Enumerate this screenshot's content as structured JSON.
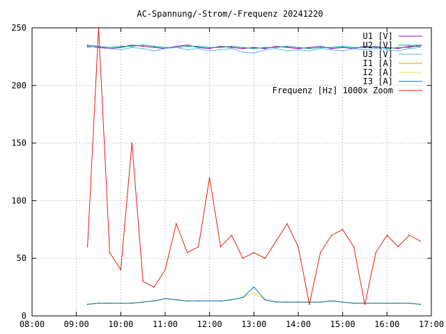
{
  "chart_data": {
    "type": "line",
    "title": "AC-Spannung/-Strom/-Frequenz 20241220",
    "xlabel": "",
    "ylabel": "",
    "xlim": [
      "08:00",
      "17:00"
    ],
    "ylim": [
      0,
      250
    ],
    "x_ticks": [
      "08:00",
      "09:00",
      "10:00",
      "11:00",
      "12:00",
      "13:00",
      "14:00",
      "15:00",
      "16:00",
      "17:00"
    ],
    "y_ticks": [
      0,
      50,
      100,
      150,
      200,
      250
    ],
    "grid": true,
    "legend_position": "top-right",
    "x": [
      "09:15",
      "09:30",
      "09:45",
      "10:00",
      "10:15",
      "10:30",
      "10:45",
      "11:00",
      "11:15",
      "11:30",
      "11:45",
      "12:00",
      "12:15",
      "12:30",
      "12:45",
      "13:00",
      "13:15",
      "13:30",
      "13:45",
      "14:00",
      "14:15",
      "14:30",
      "14:45",
      "15:00",
      "15:15",
      "15:30",
      "15:45",
      "16:00",
      "16:15",
      "16:30",
      "16:45"
    ],
    "series": [
      {
        "name": "U1 [V]",
        "color": "#9400d3",
        "values": [
          234,
          233,
          232,
          233,
          235,
          234,
          233,
          232,
          234,
          235,
          233,
          232,
          234,
          233,
          232,
          233,
          232,
          234,
          233,
          232,
          233,
          234,
          232,
          233,
          232,
          234,
          233,
          233,
          232,
          234,
          234
        ]
      },
      {
        "name": "U2 [V]",
        "color": "#009e73",
        "values": [
          235,
          234,
          233,
          234,
          234,
          235,
          234,
          233,
          233,
          234,
          234,
          233,
          233,
          234,
          233,
          232,
          233,
          233,
          234,
          233,
          232,
          233,
          233,
          234,
          233,
          233,
          234,
          232,
          233,
          233,
          235
        ]
      },
      {
        "name": "U3 [V]",
        "color": "#56b4e9",
        "values": [
          233,
          234,
          232,
          231,
          233,
          232,
          230,
          232,
          233,
          231,
          232,
          230,
          231,
          232,
          229,
          228,
          231,
          232,
          230,
          231,
          230,
          232,
          231,
          230,
          232,
          231,
          232,
          231,
          230,
          232,
          233
        ]
      },
      {
        "name": "I1 [A]",
        "color": "#e69f00",
        "values": [
          10,
          11,
          11,
          11,
          11,
          12,
          13,
          15,
          14,
          13,
          13,
          13,
          13,
          14,
          16,
          20,
          14,
          12,
          12,
          12,
          12,
          12,
          13,
          12,
          11,
          11,
          11,
          11,
          11,
          11,
          10
        ]
      },
      {
        "name": "I2 [A]",
        "color": "#f0e442",
        "values": [
          10,
          11,
          11,
          11,
          11,
          12,
          13,
          15,
          14,
          13,
          13,
          13,
          13,
          14,
          16,
          20,
          14,
          12,
          12,
          12,
          12,
          12,
          13,
          12,
          11,
          11,
          11,
          11,
          11,
          11,
          10
        ]
      },
      {
        "name": "I3 [A]",
        "color": "#0072b2",
        "values": [
          10,
          11,
          11,
          11,
          11,
          12,
          13,
          15,
          14,
          13,
          13,
          13,
          13,
          14,
          16,
          25,
          14,
          12,
          12,
          12,
          12,
          12,
          13,
          12,
          11,
          11,
          11,
          11,
          11,
          11,
          10
        ]
      },
      {
        "name": "Frequenz [Hz] 1000x Zoom",
        "color": "#e51e10",
        "values": [
          60,
          250,
          55,
          40,
          150,
          30,
          25,
          40,
          80,
          55,
          60,
          120,
          60,
          70,
          50,
          55,
          50,
          65,
          80,
          60,
          10,
          55,
          70,
          75,
          60,
          10,
          55,
          70,
          60,
          70,
          65
        ]
      }
    ]
  }
}
